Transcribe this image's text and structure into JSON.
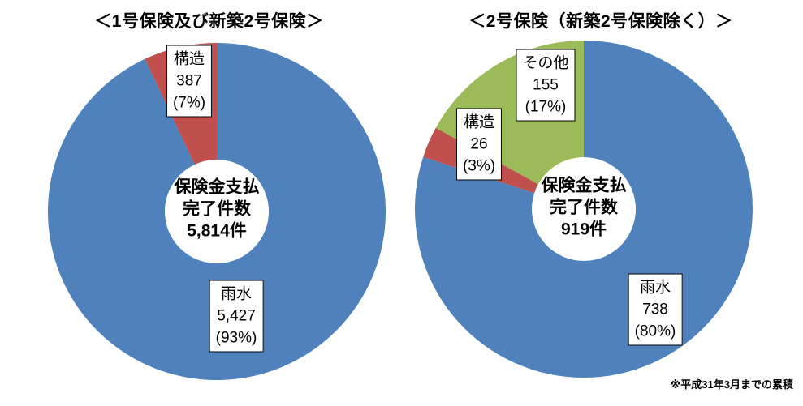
{
  "footnote": "※平成31年3月までの累積",
  "chart_data": [
    {
      "type": "pie",
      "subtype": "donut",
      "title": "＜1号保険及び新築2号保険＞",
      "legend": "none",
      "label_style": "boxed-callouts",
      "start_angle": "top, clockwise",
      "center_label": [
        "保険金支払",
        "完了件数"
      ],
      "center_value": "5,814件",
      "total": 5814,
      "unit": "件",
      "slices": [
        {
          "key": "rainwater",
          "label": "雨水",
          "value": 5427,
          "value_display": "5,427",
          "pct": 93,
          "pct_display": "(93%)",
          "color": "#4F81BD"
        },
        {
          "key": "structural",
          "label": "構造",
          "value": 387,
          "value_display": "387",
          "pct": 7,
          "pct_display": "(7%)",
          "color": "#C0504D"
        }
      ]
    },
    {
      "type": "pie",
      "subtype": "donut",
      "title": "＜2号保険（新築2号保険除く）＞",
      "legend": "none",
      "label_style": "boxed-callouts",
      "start_angle": "top, clockwise",
      "center_label": [
        "保険金支払",
        "完了件数"
      ],
      "center_value": "919件",
      "total": 919,
      "unit": "件",
      "slices": [
        {
          "key": "rainwater",
          "label": "雨水",
          "value": 738,
          "value_display": "738",
          "pct": 80,
          "pct_display": "(80%)",
          "color": "#4F81BD"
        },
        {
          "key": "structural",
          "label": "構造",
          "value": 26,
          "value_display": "26",
          "pct": 3,
          "pct_display": "(3%)",
          "color": "#C0504D"
        },
        {
          "key": "other",
          "label": "その他",
          "value": 155,
          "value_display": "155",
          "pct": 17,
          "pct_display": "(17%)",
          "color": "#9BBB59"
        }
      ]
    }
  ]
}
